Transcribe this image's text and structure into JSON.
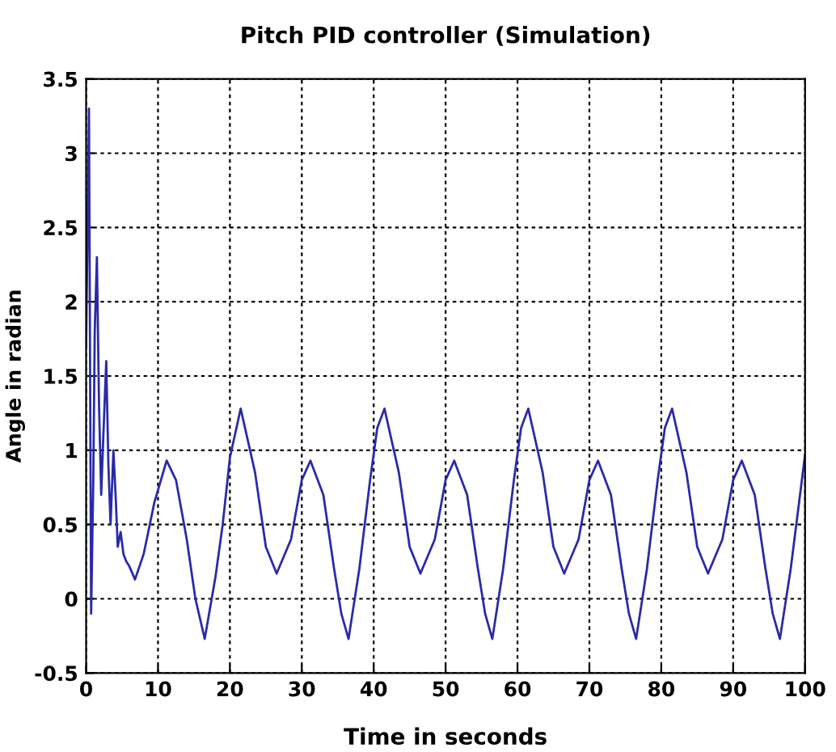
{
  "chart_data": {
    "type": "line",
    "title": "Pitch PID controller (Simulation)",
    "xlabel": "Time in seconds",
    "ylabel": "Angle in radian",
    "xlim": [
      0,
      100
    ],
    "xticks": [
      0,
      10,
      20,
      30,
      40,
      50,
      60,
      70,
      80,
      90,
      100
    ],
    "ylim": [
      -0.5,
      3.5
    ],
    "yticks": [
      -0.5,
      0,
      0.5,
      1,
      1.5,
      2,
      2.5,
      3,
      3.5
    ],
    "grid": true,
    "series": [
      {
        "color": "#2a2aa8",
        "x": [
          0,
          0.2,
          0.4,
          0.7,
          1.0,
          1.2,
          1.5,
          1.8,
          2.1,
          2.4,
          2.8,
          3.1,
          3.4,
          3.8,
          4.1,
          4.4,
          4.8,
          5.2,
          5.6,
          6.0,
          6.8,
          8,
          9.5,
          11.2,
          12.5,
          14,
          15.2,
          16.5,
          18,
          19,
          20,
          21.5,
          23.5,
          25,
          26.5,
          28.5,
          30,
          31.2,
          33,
          34.5,
          35.5,
          36.5,
          38,
          39.5,
          40.5,
          41.5,
          43.5,
          45,
          46.5,
          48.5,
          50,
          51.2,
          53,
          54.5,
          55.5,
          56.5,
          58,
          59.5,
          60.5,
          61.5,
          63.5,
          65,
          66.5,
          68.5,
          70,
          71.2,
          73,
          74.5,
          75.5,
          76.5,
          78,
          79.5,
          80.5,
          81.5,
          83.5,
          85,
          86.5,
          88.5,
          90,
          91.2,
          93,
          94.5,
          95.5,
          96.5,
          98,
          100
        ],
        "values": [
          1.7,
          2.5,
          3.3,
          -0.1,
          0.8,
          1.8,
          2.3,
          1.3,
          0.7,
          1.1,
          1.6,
          0.9,
          0.5,
          1.0,
          0.7,
          0.35,
          0.45,
          0.3,
          0.25,
          0.22,
          0.13,
          0.3,
          0.65,
          0.93,
          0.8,
          0.4,
          0.0,
          -0.27,
          0.15,
          0.5,
          0.95,
          1.28,
          0.85,
          0.35,
          0.17,
          0.4,
          0.8,
          0.93,
          0.7,
          0.2,
          -0.1,
          -0.27,
          0.2,
          0.8,
          1.15,
          1.28,
          0.85,
          0.35,
          0.17,
          0.4,
          0.8,
          0.93,
          0.7,
          0.2,
          -0.1,
          -0.27,
          0.2,
          0.8,
          1.15,
          1.28,
          0.85,
          0.35,
          0.17,
          0.4,
          0.8,
          0.93,
          0.7,
          0.2,
          -0.1,
          -0.27,
          0.2,
          0.8,
          1.15,
          1.28,
          0.85,
          0.35,
          0.17,
          0.4,
          0.8,
          0.93,
          0.7,
          0.2,
          -0.1,
          -0.27,
          0.2,
          0.97
        ]
      }
    ]
  }
}
